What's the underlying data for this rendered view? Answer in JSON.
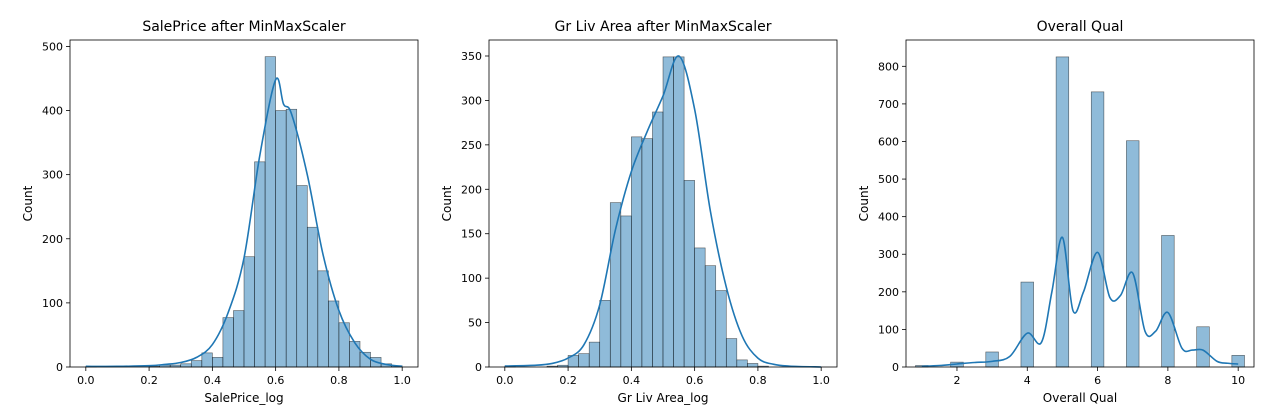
{
  "chart_data": [
    {
      "type": "bar",
      "title": "SalePrice after MinMaxScaler",
      "xlabel": "SalePrice_log",
      "ylabel": "Count",
      "xlim": [
        -0.05,
        1.05
      ],
      "ylim": [
        0,
        510
      ],
      "xticks": [
        0.0,
        0.2,
        0.4,
        0.6,
        0.8,
        1.0
      ],
      "xtick_labels": [
        "0.0",
        "0.2",
        "0.4",
        "0.6",
        "0.8",
        "1.0"
      ],
      "yticks": [
        0,
        100,
        200,
        300,
        400,
        500
      ],
      "ytick_labels": [
        "0",
        "100",
        "200",
        "300",
        "400",
        "500"
      ],
      "bar_color": "#1f77b4",
      "line_color": "#1f77b4",
      "bin_edges": [
        0.0,
        0.0333,
        0.0667,
        0.1,
        0.1333,
        0.1667,
        0.2,
        0.2333,
        0.2667,
        0.3,
        0.3333,
        0.3667,
        0.4,
        0.4333,
        0.4667,
        0.5,
        0.5333,
        0.5667,
        0.6,
        0.6333,
        0.6667,
        0.7,
        0.7333,
        0.7667,
        0.8,
        0.8333,
        0.8667,
        0.9,
        0.9333,
        0.9667,
        1.0
      ],
      "values": [
        1,
        0,
        0,
        0,
        0,
        0,
        1,
        3,
        3,
        5,
        10,
        22,
        15,
        77,
        88,
        172,
        320,
        484,
        400,
        402,
        283,
        218,
        150,
        103,
        69,
        40,
        23,
        15,
        5,
        2
      ],
      "kde": {
        "x": [
          0.0,
          0.1,
          0.2,
          0.25,
          0.3,
          0.35,
          0.4,
          0.45,
          0.5,
          0.55,
          0.6,
          0.625,
          0.65,
          0.7,
          0.75,
          0.8,
          0.85,
          0.9,
          0.95,
          1.0
        ],
        "y": [
          1,
          1,
          2,
          4,
          7,
          15,
          35,
          85,
          170,
          330,
          448,
          410,
          395,
          300,
          175,
          88,
          38,
          12,
          4,
          1
        ]
      }
    },
    {
      "type": "bar",
      "title": "Gr Liv Area after MinMaxScaler",
      "xlabel": "Gr Liv Area_log",
      "ylabel": "Count",
      "xlim": [
        -0.05,
        1.05
      ],
      "ylim": [
        0,
        368
      ],
      "xticks": [
        0.0,
        0.2,
        0.4,
        0.6,
        0.8,
        1.0
      ],
      "xtick_labels": [
        "0.0",
        "0.2",
        "0.4",
        "0.6",
        "0.8",
        "1.0"
      ],
      "yticks": [
        0,
        50,
        100,
        150,
        200,
        250,
        300,
        350
      ],
      "ytick_labels": [
        "0",
        "50",
        "100",
        "150",
        "200",
        "250",
        "300",
        "350"
      ],
      "bar_color": "#1f77b4",
      "line_color": "#1f77b4",
      "bin_edges": [
        0.0,
        0.0333,
        0.0667,
        0.1,
        0.1333,
        0.1667,
        0.2,
        0.2333,
        0.2667,
        0.3,
        0.3333,
        0.3667,
        0.4,
        0.4333,
        0.4667,
        0.5,
        0.5333,
        0.5667,
        0.6,
        0.6333,
        0.6667,
        0.7,
        0.7333,
        0.7667,
        0.8,
        0.8333,
        0.8667,
        0.9,
        0.9333,
        0.9667,
        1.0
      ],
      "values": [
        1,
        0,
        0,
        0,
        1,
        2,
        13,
        15,
        28,
        75,
        185,
        170,
        259,
        257,
        287,
        349,
        349,
        210,
        134,
        114,
        86,
        32,
        8,
        4,
        1,
        0,
        0,
        0,
        0,
        0
      ],
      "kde": {
        "x": [
          0.0,
          0.1,
          0.15,
          0.2,
          0.25,
          0.3,
          0.35,
          0.4,
          0.45,
          0.5,
          0.55,
          0.6,
          0.65,
          0.7,
          0.75,
          0.8,
          0.85,
          0.9,
          1.0
        ],
        "y": [
          1,
          2,
          4,
          10,
          25,
          70,
          155,
          220,
          265,
          305,
          350,
          290,
          175,
          90,
          35,
          10,
          3,
          1,
          0
        ]
      }
    },
    {
      "type": "bar",
      "title": "Overall Qual",
      "xlabel": "Overall Qual",
      "ylabel": "Count",
      "xlim": [
        0.55,
        10.45
      ],
      "ylim": [
        0,
        870
      ],
      "xticks": [
        2,
        4,
        6,
        8,
        10
      ],
      "xtick_labels": [
        "2",
        "4",
        "6",
        "8",
        "10"
      ],
      "yticks": [
        0,
        100,
        200,
        300,
        400,
        500,
        600,
        700,
        800
      ],
      "ytick_labels": [
        "0",
        "100",
        "200",
        "300",
        "400",
        "500",
        "600",
        "700",
        "800"
      ],
      "bar_color": "#1f77b4",
      "line_color": "#1f77b4",
      "bars": [
        {
          "x": 1,
          "value": 4
        },
        {
          "x": 2,
          "value": 13
        },
        {
          "x": 3,
          "value": 40
        },
        {
          "x": 4,
          "value": 226
        },
        {
          "x": 5,
          "value": 825
        },
        {
          "x": 6,
          "value": 732
        },
        {
          "x": 7,
          "value": 602
        },
        {
          "x": 8,
          "value": 350
        },
        {
          "x": 9,
          "value": 107
        },
        {
          "x": 10,
          "value": 31
        }
      ],
      "kde": {
        "x": [
          1.0,
          1.5,
          2.0,
          2.5,
          3.0,
          3.5,
          4.0,
          4.4,
          4.7,
          5.0,
          5.3,
          5.6,
          6.0,
          6.35,
          6.65,
          7.0,
          7.35,
          7.65,
          8.0,
          8.4,
          8.7,
          9.0,
          9.4,
          9.7,
          10.0
        ],
        "y": [
          2,
          4,
          8,
          12,
          15,
          28,
          90,
          65,
          200,
          345,
          150,
          200,
          305,
          185,
          190,
          250,
          95,
          95,
          145,
          50,
          45,
          45,
          15,
          10,
          8
        ]
      }
    }
  ]
}
